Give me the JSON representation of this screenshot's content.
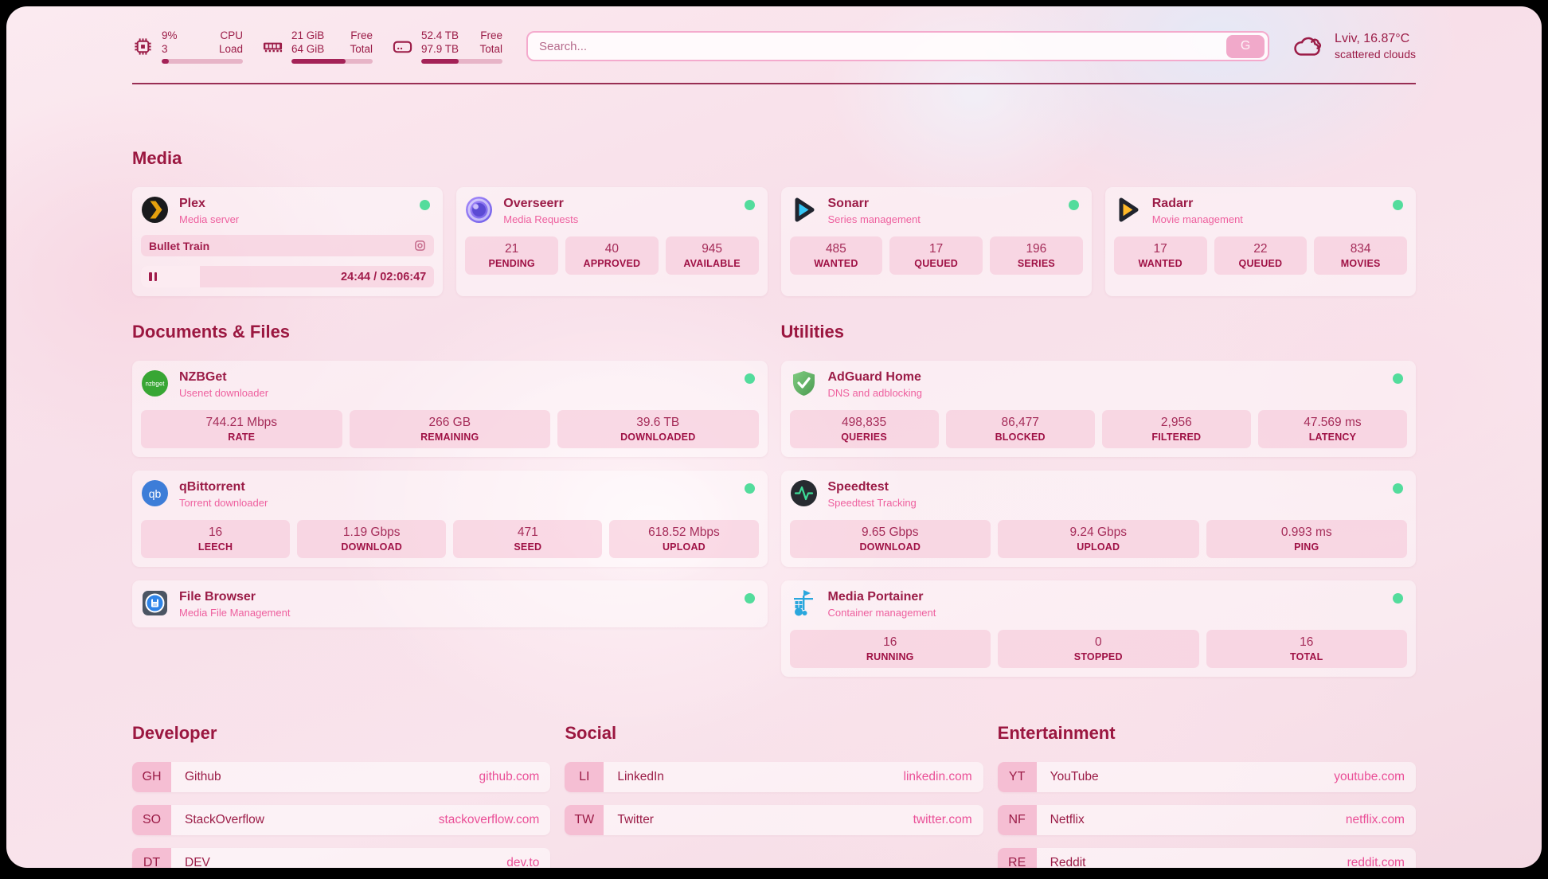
{
  "theme": {
    "text_primary": "#9b1c47",
    "text_secondary": "#ee5f9e",
    "link": "#ea4f97",
    "status_online": "#53dc9c",
    "progress_fill": "#a42257",
    "divider": "#8e1a42",
    "frame_background": "#000000"
  },
  "header": {
    "resources": [
      {
        "icon": "cpu-icon",
        "rows": [
          {
            "value": "9%",
            "label": "CPU"
          },
          {
            "value": "3",
            "label": "Load"
          }
        ],
        "progress": 9
      },
      {
        "icon": "memory-icon",
        "rows": [
          {
            "value": "21 GiB",
            "label": "Free"
          },
          {
            "value": "64 GiB",
            "label": "Total"
          }
        ],
        "progress": 67
      },
      {
        "icon": "disk-icon",
        "rows": [
          {
            "value": "52.4 TB",
            "label": "Free"
          },
          {
            "value": "97.9 TB",
            "label": "Total"
          }
        ],
        "progress": 46
      }
    ],
    "search": {
      "placeholder": "Search...",
      "provider_button": "G"
    },
    "weather": {
      "location": "Lviv, 16.87°C",
      "condition": "scattered clouds"
    }
  },
  "sections": {
    "media": {
      "title": "Media",
      "cards": [
        {
          "title": "Plex",
          "subtitle": "Media server",
          "icon": "plex-icon",
          "status": "online",
          "now_playing": {
            "track": "Bullet Train",
            "time": "24:44 / 02:06:47",
            "progress": 20
          }
        },
        {
          "title": "Overseerr",
          "subtitle": "Media Requests",
          "icon": "overseerr-icon",
          "status": "online",
          "stats": [
            {
              "value": "21",
              "label": "PENDING"
            },
            {
              "value": "40",
              "label": "APPROVED"
            },
            {
              "value": "945",
              "label": "AVAILABLE"
            }
          ]
        },
        {
          "title": "Sonarr",
          "subtitle": "Series management",
          "icon": "sonarr-icon",
          "status": "online",
          "stats": [
            {
              "value": "485",
              "label": "WANTED"
            },
            {
              "value": "17",
              "label": "QUEUED"
            },
            {
              "value": "196",
              "label": "SERIES"
            }
          ]
        },
        {
          "title": "Radarr",
          "subtitle": "Movie management",
          "icon": "radarr-icon",
          "status": "online",
          "stats": [
            {
              "value": "17",
              "label": "WANTED"
            },
            {
              "value": "22",
              "label": "QUEUED"
            },
            {
              "value": "834",
              "label": "MOVIES"
            }
          ]
        }
      ]
    },
    "documents": {
      "title": "Documents & Files",
      "cards": [
        {
          "title": "NZBGet",
          "subtitle": "Usenet downloader",
          "icon": "nzbget-icon",
          "status": "online",
          "stats": [
            {
              "value": "744.21 Mbps",
              "label": "RATE"
            },
            {
              "value": "266 GB",
              "label": "REMAINING"
            },
            {
              "value": "39.6 TB",
              "label": "DOWNLOADED"
            }
          ]
        },
        {
          "title": "qBittorrent",
          "subtitle": "Torrent downloader",
          "icon": "qbittorrent-icon",
          "status": "online",
          "stats": [
            {
              "value": "16",
              "label": "LEECH"
            },
            {
              "value": "1.19 Gbps",
              "label": "DOWNLOAD"
            },
            {
              "value": "471",
              "label": "SEED"
            },
            {
              "value": "618.52 Mbps",
              "label": "UPLOAD"
            }
          ]
        },
        {
          "title": "File Browser",
          "subtitle": "Media File Management",
          "icon": "filebrowser-icon",
          "status": "online",
          "stats": []
        }
      ]
    },
    "utilities": {
      "title": "Utilities",
      "cards": [
        {
          "title": "AdGuard Home",
          "subtitle": "DNS and adblocking",
          "icon": "adguard-icon",
          "status": "online",
          "stats": [
            {
              "value": "498,835",
              "label": "QUERIES"
            },
            {
              "value": "86,477",
              "label": "BLOCKED"
            },
            {
              "value": "2,956",
              "label": "FILTERED"
            },
            {
              "value": "47.569 ms",
              "label": "LATENCY"
            }
          ]
        },
        {
          "title": "Speedtest",
          "subtitle": "Speedtest Tracking",
          "icon": "speedtest-icon",
          "status": "online",
          "stats": [
            {
              "value": "9.65 Gbps",
              "label": "DOWNLOAD"
            },
            {
              "value": "9.24 Gbps",
              "label": "UPLOAD"
            },
            {
              "value": "0.993 ms",
              "label": "PING"
            }
          ]
        },
        {
          "title": "Media Portainer",
          "subtitle": "Container management",
          "icon": "portainer-icon",
          "status": "online",
          "stats": [
            {
              "value": "16",
              "label": "RUNNING"
            },
            {
              "value": "0",
              "label": "STOPPED"
            },
            {
              "value": "16",
              "label": "TOTAL"
            }
          ]
        }
      ]
    }
  },
  "bookmarks": [
    {
      "title": "Developer",
      "links": [
        {
          "abbr": "GH",
          "name": "Github",
          "domain": "github.com"
        },
        {
          "abbr": "SO",
          "name": "StackOverflow",
          "domain": "stackoverflow.com"
        },
        {
          "abbr": "DT",
          "name": "DEV",
          "domain": "dev.to"
        }
      ]
    },
    {
      "title": "Social",
      "links": [
        {
          "abbr": "LI",
          "name": "LinkedIn",
          "domain": "linkedin.com"
        },
        {
          "abbr": "TW",
          "name": "Twitter",
          "domain": "twitter.com"
        }
      ]
    },
    {
      "title": "Entertainment",
      "links": [
        {
          "abbr": "YT",
          "name": "YouTube",
          "domain": "youtube.com"
        },
        {
          "abbr": "NF",
          "name": "Netflix",
          "domain": "netflix.com"
        },
        {
          "abbr": "RE",
          "name": "Reddit",
          "domain": "reddit.com"
        }
      ]
    }
  ]
}
